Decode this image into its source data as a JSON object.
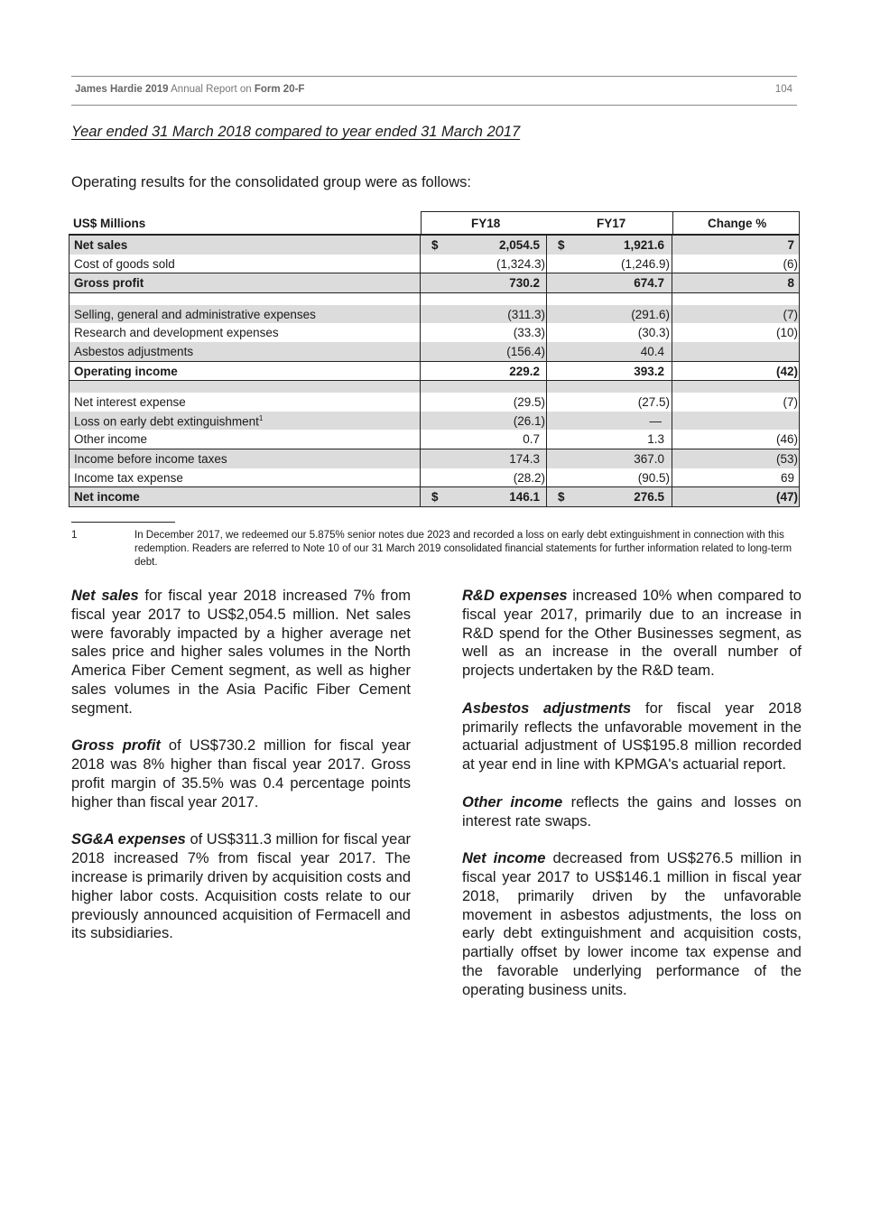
{
  "header": {
    "company": "James Hardie 2019",
    "report": "Annual Report on",
    "form": "Form 20-F",
    "page_number": "104"
  },
  "subtitle": "Year ended 31 March 2018 compared to year ended 31 March 2017",
  "intro": "Operating results for the consolidated group were as follows:",
  "table": {
    "headers": {
      "label": "US$ Millions",
      "fy18": "FY18",
      "fy17": "FY17",
      "change": "Change %"
    },
    "rows": [
      {
        "label": "Net sales",
        "fy18": "2,054.5",
        "fy17": "1,921.6",
        "change": "7",
        "bold": true,
        "dollar": true
      },
      {
        "label": "Cost of goods sold",
        "fy18": "(1,324.3)",
        "fy17": "(1,246.9)",
        "change": "(6)"
      },
      {
        "label": "Gross profit",
        "fy18": "730.2",
        "fy17": "674.7",
        "change": "8",
        "bold": true
      },
      {
        "blank": true
      },
      {
        "label": "Selling, general and administrative expenses",
        "fy18": "(311.3)",
        "fy17": "(291.6)",
        "change": "(7)"
      },
      {
        "label": "Research and development expenses",
        "fy18": "(33.3)",
        "fy17": "(30.3)",
        "change": "(10)"
      },
      {
        "label": "Asbestos adjustments",
        "fy18": "(156.4)",
        "fy17": "40.4",
        "change": ""
      },
      {
        "label": "Operating income",
        "fy18": "229.2",
        "fy17": "393.2",
        "change": "(42)",
        "bold": true
      },
      {
        "blank": true
      },
      {
        "label": "Net interest expense",
        "fy18": "(29.5)",
        "fy17": "(27.5)",
        "change": "(7)"
      },
      {
        "label": "Loss on early debt extinguishment",
        "sup": "1",
        "fy18": "(26.1)",
        "fy17": "—",
        "change": ""
      },
      {
        "label": "Other income",
        "fy18": "0.7",
        "fy17": "1.3",
        "change": "(46)"
      },
      {
        "label": "Income before income taxes",
        "fy18": "174.3",
        "fy17": "367.0",
        "change": "(53)"
      },
      {
        "label": "Income tax expense",
        "fy18": "(28.2)",
        "fy17": "(90.5)",
        "change": "69"
      },
      {
        "label": "Net income",
        "fy18": "146.1",
        "fy17": "276.5",
        "change": "(47)",
        "bold": true,
        "dollar": true
      }
    ],
    "currency_symbol": "$"
  },
  "footnote": {
    "number": "1",
    "text": "In December 2017, we redeemed our 5.875% senior notes due 2023 and recorded a loss on early debt extinguishment in connection with this redemption. Readers are referred to Note 10 of our 31 March 2019 consolidated financial statements for further information related to long-term debt."
  },
  "left_column": [
    {
      "lead": "Net sales",
      "text": " for fiscal year 2018 increased 7% from fiscal year 2017 to US$2,054.5 million. Net sales were favorably impacted by a higher average net sales price and higher sales volumes in the North America Fiber Cement segment, as well as higher sales volumes in the Asia Pacific Fiber Cement segment."
    },
    {
      "lead": "Gross profit",
      "text": " of US$730.2 million for fiscal year 2018 was 8% higher than fiscal year 2017. Gross profit margin of 35.5% was 0.4 percentage points higher than fiscal year 2017."
    },
    {
      "lead": "SG&A expenses",
      "text": " of US$311.3 million for fiscal year 2018 increased 7% from fiscal year 2017. The increase is primarily driven by acquisition costs and higher labor costs. Acquisition costs relate to our previously announced acquisition of Fermacell and its subsidiaries."
    }
  ],
  "right_column": [
    {
      "lead": "R&D expenses",
      "text": " increased 10% when compared to fiscal year 2017, primarily due to an increase in R&D spend for the Other Businesses segment, as well as an increase in the overall number of projects undertaken by the R&D team."
    },
    {
      "lead": "Asbestos adjustments",
      "text": " for fiscal year 2018 primarily reflects the unfavorable movement in the actuarial adjustment of US$195.8 million recorded at year end in line with KPMGA's actuarial report."
    },
    {
      "lead": "Other income",
      "text": " reflects the gains and losses on interest rate swaps."
    },
    {
      "lead": "Net income",
      "text": " decreased from US$276.5 million in fiscal year 2017 to US$146.1 million in fiscal year 2018, primarily driven by the unfavorable movement in asbestos adjustments, the loss on early debt extinguishment and acquisition costs, partially offset by lower income tax expense and the favorable underlying performance of the operating business units."
    }
  ]
}
